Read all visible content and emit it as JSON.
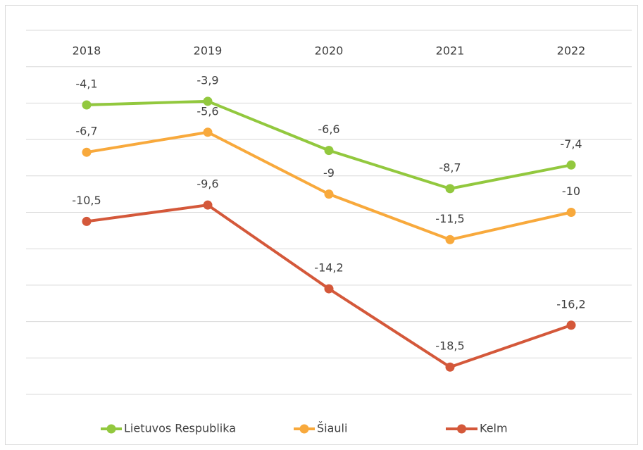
{
  "chart_data": {
    "type": "line",
    "categories": [
      "2018",
      "2019",
      "2020",
      "2021",
      "2022"
    ],
    "series": [
      {
        "name": "Lietuvos Respublika",
        "color": "#92c83e",
        "values": [
          -4.1,
          -3.9,
          -6.6,
          -8.7,
          -7.4
        ],
        "value_labels": [
          "-4,1",
          "-3,9",
          "-6,6",
          "-8,7",
          "-7,4"
        ]
      },
      {
        "name": "Šiauli",
        "color": "#f8a93c",
        "values": [
          -6.7,
          -5.6,
          -9,
          -11.5,
          -10
        ],
        "value_labels": [
          "-6,7",
          "-5,6",
          "-9",
          "-11,5",
          "-10"
        ]
      },
      {
        "name": "Kelm",
        "color": "#d4583a",
        "values": [
          -10.5,
          -9.6,
          -14.2,
          -18.5,
          -16.2
        ],
        "value_labels": [
          "-10,5",
          "-9,6",
          "-14,2",
          "-18,5",
          "-16,2"
        ]
      }
    ],
    "ylim": [
      -20,
      0
    ],
    "yticks": [
      -20,
      -18,
      -16,
      -14,
      -12,
      -10,
      -8,
      -6,
      -4,
      -2,
      0
    ],
    "grid": true,
    "legend": "bottom"
  }
}
